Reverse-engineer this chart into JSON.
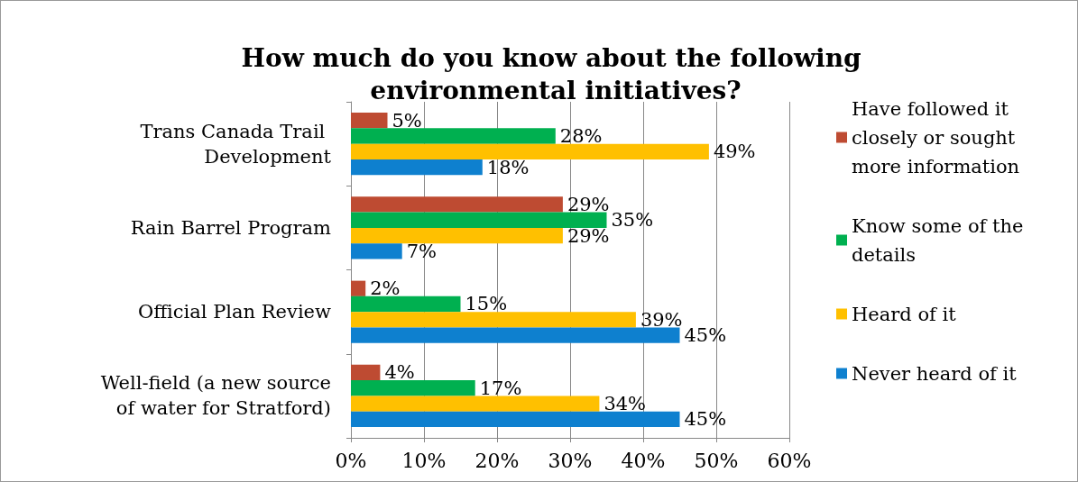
{
  "chart_data": {
    "type": "bar",
    "orientation": "horizontal",
    "title": "How much do you know about the following environmental initiatives?",
    "categories": [
      "Trans Canada Trail Development",
      "Rain Barrel Program",
      "Official Plan Review",
      "Well-field (a new source of water for Stratford)"
    ],
    "series": [
      {
        "name": "Have followed it closely or sought more information",
        "color": "#be4b32",
        "values": [
          5,
          29,
          2,
          4
        ],
        "value_labels": [
          "5%",
          "29%",
          "2%",
          "4%"
        ]
      },
      {
        "name": "Know some of the details",
        "color": "#00b050",
        "values": [
          28,
          35,
          15,
          17
        ],
        "value_labels": [
          "28%",
          "35%",
          "15%",
          "17%"
        ]
      },
      {
        "name": "Heard of it",
        "color": "#ffc000",
        "values": [
          49,
          29,
          39,
          34
        ],
        "value_labels": [
          "49%",
          "29%",
          "39%",
          "34%"
        ]
      },
      {
        "name": "Never heard of it",
        "color": "#0e80cf",
        "values": [
          18,
          7,
          45,
          45
        ],
        "value_labels": [
          "18%",
          "7%",
          "45%",
          "45%"
        ]
      }
    ],
    "xlim": [
      0,
      60
    ],
    "xticks": [
      {
        "value": 0,
        "label": "0%"
      },
      {
        "value": 10,
        "label": "10%"
      },
      {
        "value": 20,
        "label": "20%"
      },
      {
        "value": 30,
        "label": "30%"
      },
      {
        "value": 40,
        "label": "40%"
      },
      {
        "value": 50,
        "label": "50%"
      },
      {
        "value": 60,
        "label": "60%"
      }
    ],
    "grid": "x",
    "legend": "right"
  }
}
